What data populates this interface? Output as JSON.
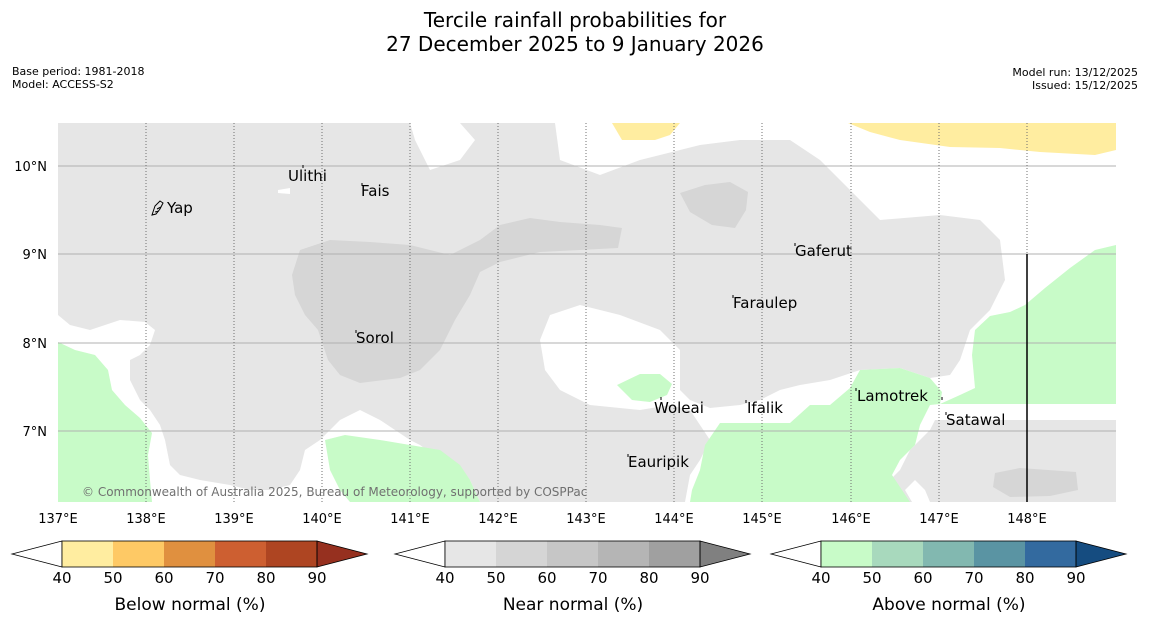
{
  "title_line1": "Tercile rainfall probabilities for",
  "title_line2": "27 December 2025 to 9 January 2026",
  "meta_left": {
    "base_period": "Base period: 1981-2018",
    "model": "Model: ACCESS-S2"
  },
  "meta_right": {
    "model_run": "Model run: 13/12/2025",
    "issued": "Issued: 15/12/2025"
  },
  "credit": "© Commonwealth of Australia 2025, Bureau of Meteorology, supported by COSPPac",
  "lat_labels": [
    "10°N",
    "9°N",
    "8°N",
    "7°N"
  ],
  "lon_labels": [
    "137°E",
    "138°E",
    "139°E",
    "140°E",
    "141°E",
    "142°E",
    "143°E",
    "144°E",
    "145°E",
    "146°E",
    "147°E",
    "148°E"
  ],
  "places": [
    "Yap",
    "Ulithi",
    "Fais",
    "Gaferut",
    "Faraulep",
    "Sorol",
    "Woleai",
    "Ifalik",
    "Lamotrek",
    "Satawal",
    "Eauripik"
  ],
  "colorbars": [
    {
      "label": "Below normal (%)",
      "ticks": [
        "40",
        "50",
        "60",
        "70",
        "80",
        "90"
      ],
      "colors": [
        "#ffeda0",
        "#fec965",
        "#e0903f",
        "#cd5f31",
        "#ae4522",
        "#96301f"
      ]
    },
    {
      "label": "Near normal (%)",
      "ticks": [
        "40",
        "50",
        "60",
        "70",
        "80",
        "90"
      ],
      "colors": [
        "#e6e6e6",
        "#d5d5d5",
        "#c6c6c6",
        "#b5b5b5",
        "#a0a0a0",
        "#808080"
      ]
    },
    {
      "label": "Above normal (%)",
      "ticks": [
        "40",
        "50",
        "60",
        "70",
        "80",
        "90"
      ],
      "colors": [
        "#c8fbc8",
        "#a8d9bd",
        "#82b8b0",
        "#5a94a3",
        "#336a9f",
        "#154c80"
      ]
    }
  ]
}
